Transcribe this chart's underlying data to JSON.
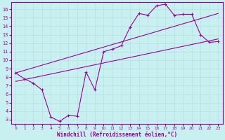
{
  "xlabel": "Windchill (Refroidissement éolien,°C)",
  "bg_color": "#c8f0f0",
  "line_color": "#990099",
  "grid_color": "#b8e0e0",
  "x_ticks": [
    0,
    1,
    2,
    3,
    4,
    5,
    6,
    7,
    8,
    9,
    10,
    11,
    12,
    13,
    14,
    15,
    16,
    17,
    18,
    19,
    20,
    21,
    22,
    23
  ],
  "y_ticks": [
    3,
    4,
    5,
    6,
    7,
    8,
    9,
    10,
    11,
    12,
    13,
    14,
    15,
    16
  ],
  "ylim": [
    2.5,
    16.8
  ],
  "xlim": [
    -0.5,
    23.5
  ],
  "curve1_x": [
    0,
    1,
    2,
    3,
    4,
    5,
    6,
    7,
    8,
    9,
    10,
    11,
    12,
    13,
    14,
    15,
    16,
    17,
    18,
    19,
    20,
    21,
    22,
    23
  ],
  "curve1_y": [
    8.5,
    7.8,
    7.3,
    6.5,
    3.3,
    2.8,
    3.5,
    3.4,
    8.6,
    6.5,
    11.0,
    11.3,
    11.7,
    13.9,
    15.5,
    15.3,
    16.4,
    16.6,
    15.3,
    15.4,
    15.4,
    13.0,
    12.1,
    12.2
  ],
  "curve2_x": [
    0,
    23
  ],
  "curve2_y": [
    8.5,
    15.5
  ],
  "curve3_x": [
    0,
    23
  ],
  "curve3_y": [
    7.5,
    12.5
  ]
}
